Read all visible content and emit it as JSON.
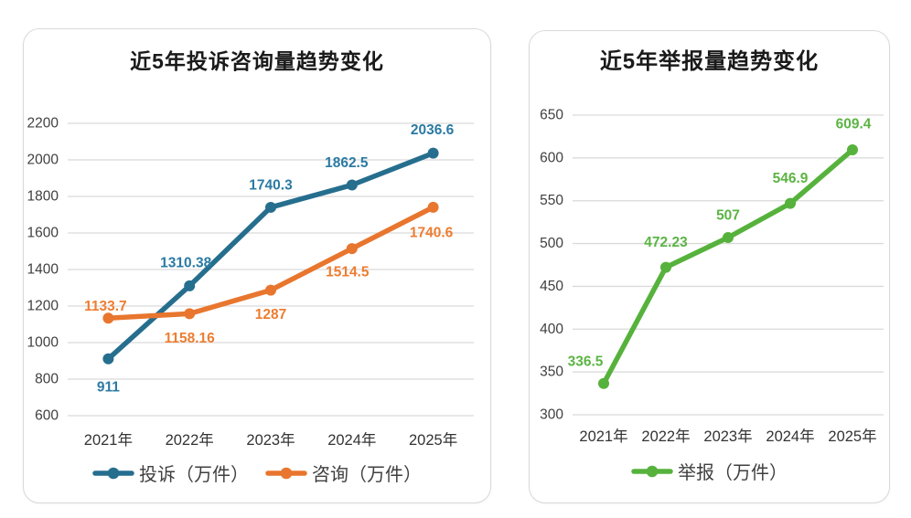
{
  "colors": {
    "background": "#FFFFFF",
    "card_border": "#D9D9D9",
    "grid": "#D9D9D9",
    "tick_label": "#404040",
    "axis_label": "#333333",
    "legend_text": "#3F3F3F",
    "title": "#1A1A1A"
  },
  "chart_data": [
    {
      "type": "line",
      "title": "近5年投诉咨询量趋势变化",
      "categories": [
        "2021年",
        "2022年",
        "2023年",
        "2024年",
        "2025年"
      ],
      "ylim": [
        600,
        2200
      ],
      "ytick_step": 200,
      "grid": "horizontal",
      "legend_position": "bottom",
      "series": [
        {
          "name": "投诉（万件）",
          "color": "#266E8E",
          "label_color": "#2B7AA3",
          "values": [
            911,
            1310.38,
            1740.3,
            1862.5,
            2036.6
          ],
          "labels": [
            "911",
            "1310.38",
            "1740.3",
            "1862.5",
            "2036.6"
          ],
          "label_dx": [
            0,
            -4,
            0,
            -6,
            -1
          ],
          "label_dy": [
            31,
            -25,
            -24,
            -24,
            -25
          ]
        },
        {
          "name": "咨询（万件）",
          "color": "#E8762E",
          "label_color": "#ED7D31",
          "values": [
            1133.7,
            1158.16,
            1287,
            1514.5,
            1740.6
          ],
          "labels": [
            "1133.7",
            "1158.16",
            "1287",
            "1514.5",
            "1740.6"
          ],
          "label_dx": [
            -3,
            0,
            0,
            -5,
            -2
          ],
          "label_dy": [
            -13,
            27,
            27,
            26,
            28
          ]
        }
      ]
    },
    {
      "type": "line",
      "title": "近5年举报量趋势变化",
      "categories": [
        "2021年",
        "2022年",
        "2023年",
        "2024年",
        "2025年"
      ],
      "ylim": [
        300,
        650
      ],
      "ytick_step": 50,
      "grid": "horizontal",
      "legend_position": "bottom",
      "series": [
        {
          "name": "举报（万件）",
          "color": "#56B23C",
          "label_color": "#5BB443",
          "values": [
            336.5,
            472.23,
            507,
            546.9,
            609.4
          ],
          "labels": [
            "336.5",
            "472.23",
            "507",
            "546.9",
            "609.4"
          ],
          "label_dx": [
            -20,
            0,
            0,
            0,
            1
          ],
          "label_dy": [
            -24,
            -27,
            -24,
            -27,
            -28
          ]
        }
      ]
    }
  ]
}
